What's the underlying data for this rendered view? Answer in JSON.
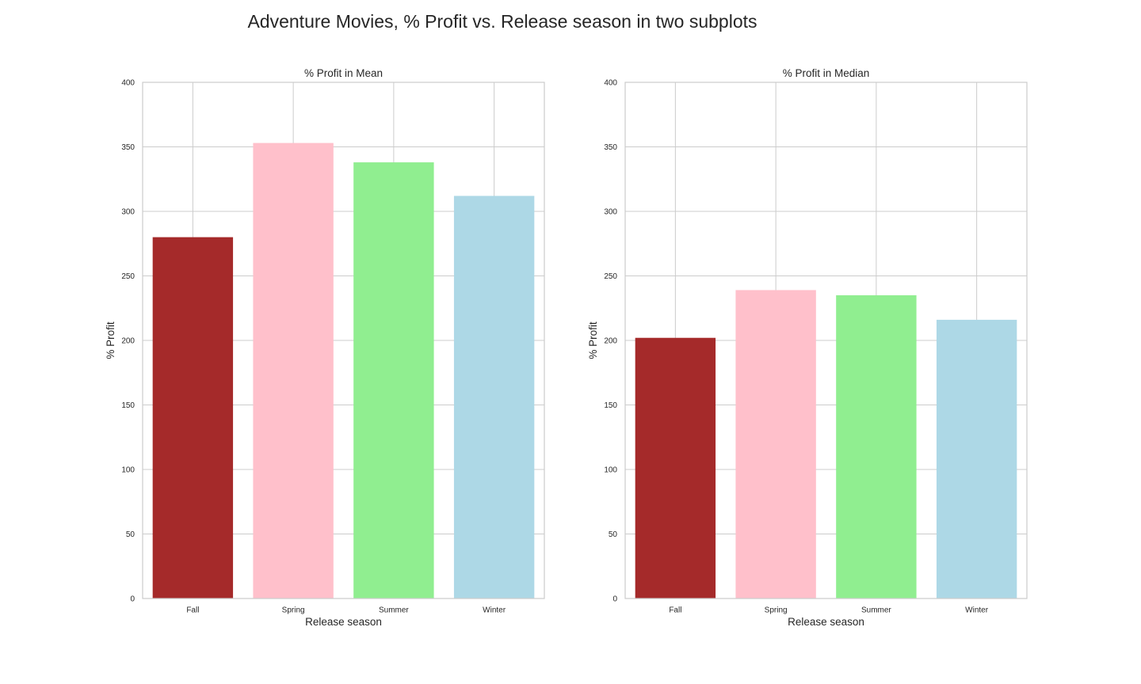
{
  "figure_title": "Adventure Movies, % Profit vs. Release season in two subplots",
  "chart_data": [
    {
      "type": "bar",
      "title": "% Profit in Mean",
      "xlabel": "Release season",
      "ylabel": "% Profit",
      "categories": [
        "Fall",
        "Spring",
        "Summer",
        "Winter"
      ],
      "values": [
        280,
        353,
        338,
        312
      ],
      "colors": [
        "#a52a2a",
        "#ffc0cb",
        "#90ee90",
        "#add8e6"
      ],
      "ylim": [
        0,
        400
      ],
      "yticks": [
        0,
        50,
        100,
        150,
        200,
        250,
        300,
        350,
        400
      ],
      "grid": true
    },
    {
      "type": "bar",
      "title": "% Profit in Median",
      "xlabel": "Release season",
      "ylabel": "% Profit",
      "categories": [
        "Fall",
        "Spring",
        "Summer",
        "Winter"
      ],
      "values": [
        202,
        239,
        235,
        216
      ],
      "colors": [
        "#a52a2a",
        "#ffc0cb",
        "#90ee90",
        "#add8e6"
      ],
      "ylim": [
        0,
        400
      ],
      "yticks": [
        0,
        50,
        100,
        150,
        200,
        250,
        300,
        350,
        400
      ],
      "grid": true
    }
  ]
}
